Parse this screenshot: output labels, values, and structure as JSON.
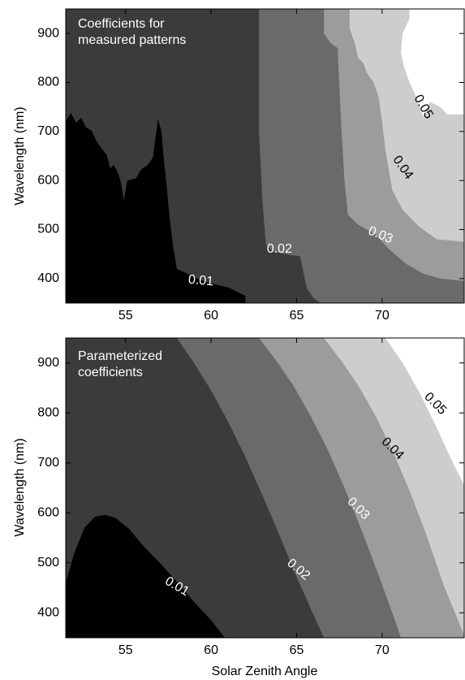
{
  "chart_data": [
    {
      "type": "contour",
      "id": "top",
      "title": "Coefficients for\nmeasured patterns",
      "xlabel": "",
      "ylabel": "Wavelength (nm)",
      "xlim": [
        51.5,
        74.8
      ],
      "ylim": [
        350,
        950
      ],
      "xticks": [
        55,
        60,
        65,
        70
      ],
      "yticks": [
        400,
        500,
        600,
        700,
        800,
        900
      ],
      "grid": false,
      "levels": [
        {
          "value": 0.01,
          "label": "0.01",
          "color": "#000000"
        },
        {
          "value": 0.02,
          "label": "0.02",
          "color": "#3b3b3b"
        },
        {
          "value": 0.03,
          "label": "0.03",
          "color": "#6a6a6a"
        },
        {
          "value": 0.04,
          "label": "0.04",
          "color": "#9c9c9c"
        },
        {
          "value": 0.05,
          "label": "0.05",
          "color": "#cdcdcd"
        },
        {
          "value": 0.06,
          "label": "",
          "color": "#ffffff"
        }
      ],
      "band_upper_boundaries": [
        [
          [
            51.5,
            720
          ],
          [
            51.8,
            738
          ],
          [
            52.1,
            718
          ],
          [
            52.4,
            728
          ],
          [
            52.7,
            708
          ],
          [
            53.0,
            702
          ],
          [
            53.3,
            680
          ],
          [
            53.6,
            665
          ],
          [
            53.9,
            652
          ],
          [
            54.1,
            625
          ],
          [
            54.3,
            632
          ],
          [
            54.5,
            620
          ],
          [
            54.7,
            600
          ],
          [
            54.9,
            560
          ],
          [
            55.1,
            600
          ],
          [
            55.6,
            604
          ],
          [
            55.9,
            622
          ],
          [
            56.3,
            632
          ],
          [
            56.6,
            647
          ],
          [
            56.8,
            700
          ],
          [
            56.9,
            725
          ],
          [
            57.1,
            700
          ],
          [
            57.2,
            655
          ],
          [
            57.4,
            590
          ],
          [
            57.6,
            515
          ],
          [
            57.8,
            460
          ],
          [
            58.0,
            420
          ],
          [
            58.6,
            410
          ],
          [
            59.3,
            398
          ],
          [
            60.0,
            390
          ],
          [
            61.0,
            382
          ],
          [
            62.0,
            365
          ],
          [
            62.0,
            350
          ]
        ],
        [
          [
            62.8,
            950
          ],
          [
            62.8,
            700
          ],
          [
            63.0,
            560
          ],
          [
            63.2,
            470
          ],
          [
            63.6,
            455
          ],
          [
            64.6,
            448
          ],
          [
            65.2,
            446
          ],
          [
            65.6,
            380
          ],
          [
            66.0,
            360
          ],
          [
            66.4,
            350
          ]
        ],
        [
          [
            66.6,
            950
          ],
          [
            66.6,
            900
          ],
          [
            67.0,
            880
          ],
          [
            67.4,
            870
          ],
          [
            67.6,
            720
          ],
          [
            67.8,
            600
          ],
          [
            68.0,
            530
          ],
          [
            68.6,
            510
          ],
          [
            69.6,
            490
          ],
          [
            70.4,
            460
          ],
          [
            71.4,
            430
          ],
          [
            72.4,
            410
          ],
          [
            73.4,
            400
          ],
          [
            74.8,
            395
          ]
        ],
        [
          [
            68.1,
            950
          ],
          [
            68.1,
            910
          ],
          [
            68.4,
            880
          ],
          [
            68.6,
            850
          ],
          [
            68.9,
            840
          ],
          [
            69.1,
            820
          ],
          [
            69.5,
            800
          ],
          [
            69.8,
            770
          ],
          [
            70.0,
            720
          ],
          [
            70.2,
            660
          ],
          [
            70.4,
            620
          ],
          [
            70.6,
            580
          ],
          [
            71.2,
            540
          ],
          [
            72.2,
            505
          ],
          [
            73.2,
            480
          ],
          [
            74.8,
            475
          ]
        ],
        [
          [
            71.6,
            950
          ],
          [
            71.6,
            930
          ],
          [
            71.2,
            900
          ],
          [
            71.1,
            860
          ],
          [
            71.3,
            830
          ],
          [
            71.6,
            800
          ],
          [
            72.0,
            770
          ],
          [
            72.4,
            730
          ],
          [
            72.8,
            760
          ],
          [
            73.4,
            750
          ],
          [
            73.8,
            735
          ],
          [
            74.8,
            735
          ]
        ]
      ],
      "contour_labels": [
        {
          "text": "0.01",
          "x": 59.4,
          "y": 395,
          "angle": 5,
          "color": "#ffffff"
        },
        {
          "text": "0.02",
          "x": 64.0,
          "y": 460,
          "angle": 0,
          "color": "#ffffff"
        },
        {
          "text": "0.03",
          "x": 69.9,
          "y": 488,
          "angle": 22,
          "color": "#ffffff"
        },
        {
          "text": "0.04",
          "x": 71.2,
          "y": 626,
          "angle": 55,
          "color": "#000000"
        },
        {
          "text": "0.05",
          "x": 72.4,
          "y": 750,
          "angle": 60,
          "color": "#000000"
        }
      ]
    },
    {
      "type": "contour",
      "id": "bottom",
      "title": "Parameterized\ncoefficients",
      "xlabel": "Solar Zenith Angle",
      "ylabel": "Wavelength (nm)",
      "xlim": [
        51.5,
        74.8
      ],
      "ylim": [
        350,
        950
      ],
      "xticks": [
        55,
        60,
        65,
        70
      ],
      "yticks": [
        400,
        500,
        600,
        700,
        800,
        900
      ],
      "grid": false,
      "levels": [
        {
          "value": 0.01,
          "label": "0.01",
          "color": "#000000"
        },
        {
          "value": 0.02,
          "label": "0.02",
          "color": "#3b3b3b"
        },
        {
          "value": 0.03,
          "label": "0.03",
          "color": "#6a6a6a"
        },
        {
          "value": 0.04,
          "label": "0.04",
          "color": "#9c9c9c"
        },
        {
          "value": 0.05,
          "label": "0.05",
          "color": "#cdcdcd"
        },
        {
          "value": 0.06,
          "label": "",
          "color": "#ffffff"
        }
      ],
      "band_upper_boundaries": [
        [
          [
            51.5,
            460
          ],
          [
            52.0,
            520
          ],
          [
            52.6,
            570
          ],
          [
            53.2,
            592
          ],
          [
            53.8,
            596
          ],
          [
            54.4,
            590
          ],
          [
            55.2,
            568
          ],
          [
            56.0,
            535
          ],
          [
            57.0,
            500
          ],
          [
            58.0,
            462
          ],
          [
            59.0,
            422
          ],
          [
            60.0,
            385
          ],
          [
            60.8,
            350
          ]
        ],
        [
          [
            58.0,
            950
          ],
          [
            59.0,
            900
          ],
          [
            60.0,
            845
          ],
          [
            61.0,
            782
          ],
          [
            62.0,
            712
          ],
          [
            63.0,
            635
          ],
          [
            64.0,
            555
          ],
          [
            65.0,
            472
          ],
          [
            66.0,
            395
          ],
          [
            66.6,
            350
          ]
        ],
        [
          [
            62.8,
            950
          ],
          [
            63.8,
            905
          ],
          [
            64.8,
            855
          ],
          [
            65.8,
            795
          ],
          [
            66.8,
            728
          ],
          [
            67.8,
            650
          ],
          [
            68.8,
            565
          ],
          [
            69.8,
            475
          ],
          [
            70.8,
            380
          ],
          [
            71.1,
            350
          ]
        ],
        [
          [
            66.6,
            950
          ],
          [
            67.6,
            905
          ],
          [
            68.6,
            855
          ],
          [
            69.6,
            795
          ],
          [
            70.6,
            725
          ],
          [
            71.6,
            645
          ],
          [
            72.6,
            555
          ],
          [
            73.6,
            455
          ],
          [
            74.8,
            355
          ]
        ],
        [
          [
            70.2,
            950
          ],
          [
            71.2,
            900
          ],
          [
            72.2,
            840
          ],
          [
            73.2,
            770
          ],
          [
            74.0,
            710
          ],
          [
            74.8,
            655
          ]
        ]
      ],
      "contour_labels": [
        {
          "text": "0.01",
          "x": 58.0,
          "y": 452,
          "angle": 30,
          "color": "#ffffff"
        },
        {
          "text": "0.02",
          "x": 65.1,
          "y": 486,
          "angle": 40,
          "color": "#ffffff"
        },
        {
          "text": "0.03",
          "x": 68.6,
          "y": 608,
          "angle": 45,
          "color": "#ffffff"
        },
        {
          "text": "0.04",
          "x": 70.6,
          "y": 728,
          "angle": 45,
          "color": "#000000"
        },
        {
          "text": "0.05",
          "x": 73.1,
          "y": 818,
          "angle": 45,
          "color": "#000000"
        }
      ]
    }
  ]
}
